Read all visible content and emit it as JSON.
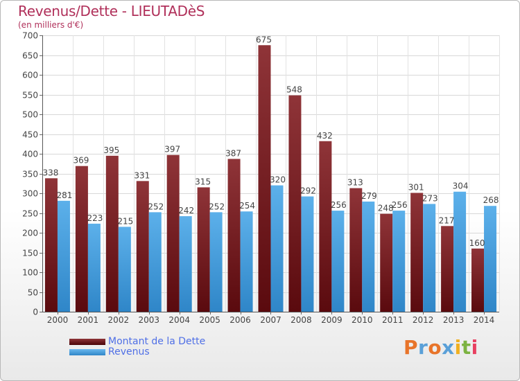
{
  "header": {
    "title": "Revenus/Dette - LIEUTADèS",
    "subtitle": "(en milliers d'€)"
  },
  "legend": {
    "items": [
      {
        "label": "Montant de la Dette",
        "color": "#6b1418"
      },
      {
        "label": "Revenus",
        "color": "#4aa3e0"
      }
    ]
  },
  "logo": {
    "text": "Proxiti",
    "letters": [
      {
        "ch": "P",
        "color": "#e8742a"
      },
      {
        "ch": "r",
        "color": "#5aa0d8"
      },
      {
        "ch": "o",
        "color": "#e8742a"
      },
      {
        "ch": "x",
        "color": "#5aa0d8"
      },
      {
        "ch": "i",
        "color": "#f0b020"
      },
      {
        "ch": "t",
        "color": "#7cb342"
      },
      {
        "ch": "i",
        "color": "#e84060"
      }
    ]
  },
  "chart_data": {
    "type": "bar",
    "categories": [
      "2000",
      "2001",
      "2002",
      "2003",
      "2004",
      "2005",
      "2006",
      "2007",
      "2008",
      "2009",
      "2010",
      "2011",
      "2012",
      "2013",
      "2014"
    ],
    "series": [
      {
        "name": "Montant de la Dette",
        "color": "#6b1418",
        "values": [
          338,
          369,
          395,
          331,
          397,
          315,
          387,
          675,
          548,
          432,
          313,
          248,
          301,
          217,
          160
        ]
      },
      {
        "name": "Revenus",
        "color": "#4aa3e0",
        "values": [
          281,
          223,
          215,
          252,
          242,
          252,
          254,
          320,
          292,
          256,
          279,
          256,
          273,
          304,
          268
        ]
      }
    ],
    "title": "Revenus/Dette - LIEUTADèS",
    "subtitle": "(en milliers d'€)",
    "ylim": [
      0,
      700
    ],
    "yticks": [
      0,
      50,
      100,
      150,
      200,
      250,
      300,
      350,
      400,
      450,
      500,
      550,
      600,
      650,
      700
    ],
    "grid": true,
    "legend": "bottom-left"
  }
}
